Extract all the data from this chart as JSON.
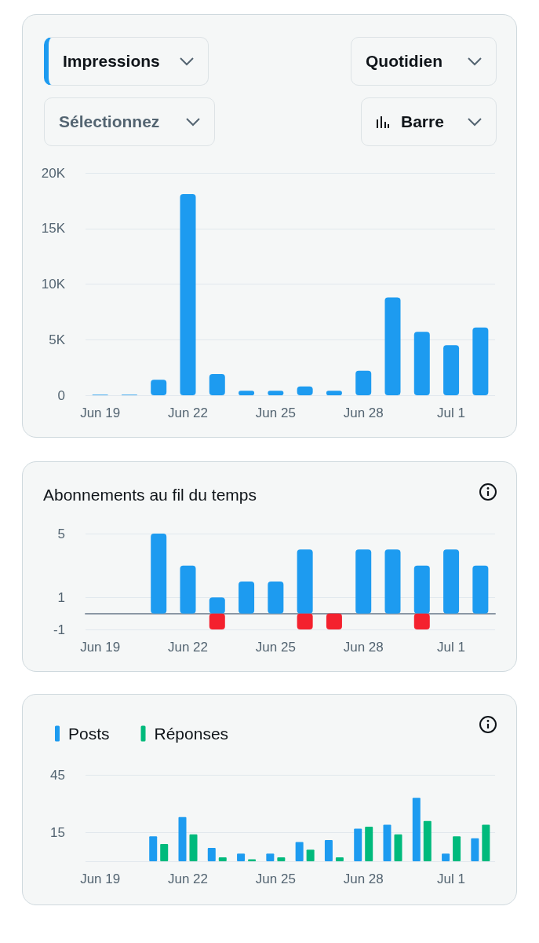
{
  "chart_data": [
    {
      "type": "bar",
      "title": "Impressions",
      "annotations": [
        "Quotidien",
        "Sélectionnez",
        "Barre"
      ],
      "categories": [
        "Jun 19",
        null,
        null,
        "Jun 22",
        null,
        null,
        "Jun 25",
        null,
        null,
        "Jun 28",
        null,
        null,
        "Jul 1",
        null
      ],
      "color": "#1d9bf0",
      "values": [
        50,
        50,
        1400,
        18100,
        1900,
        400,
        400,
        800,
        400,
        2200,
        8800,
        5700,
        4500,
        6100
      ],
      "ylim": [
        0,
        20000
      ],
      "yticks": [
        0,
        {
          "value": 5000,
          "label": "5K"
        },
        {
          "value": 10000,
          "label": "10K"
        },
        {
          "value": 15000,
          "label": "15K"
        },
        {
          "value": 20000,
          "label": "20K"
        }
      ],
      "grid": "y"
    },
    {
      "type": "bar",
      "title": "Abonnements au fil du temps",
      "stacked": true,
      "categories": [
        "Jun 19",
        null,
        null,
        "Jun 22",
        null,
        null,
        "Jun 25",
        null,
        null,
        "Jun 28",
        null,
        null,
        "Jul 1",
        null
      ],
      "series": [
        {
          "color": "#1d9bf0",
          "values": [
            0,
            0,
            5,
            3,
            1,
            2,
            2,
            4,
            0,
            4,
            4,
            3,
            4,
            3
          ]
        },
        {
          "color": "#f4212e",
          "values": [
            0,
            0,
            0,
            0,
            -1,
            0,
            0,
            -1,
            -1,
            0,
            0,
            -1,
            0,
            0
          ]
        }
      ],
      "ylim": [
        -1,
        5
      ],
      "yticks": [
        -1,
        1,
        5
      ],
      "grid": "y"
    },
    {
      "type": "bar",
      "legend": "top left",
      "categories": [
        "Jun 19",
        null,
        null,
        "Jun 22",
        null,
        null,
        "Jun 25",
        null,
        null,
        "Jun 28",
        null,
        null,
        "Jul 1",
        null
      ],
      "series": [
        {
          "name": "Posts",
          "color": "#1d9bf0",
          "values": [
            0,
            0,
            13,
            23,
            7,
            4,
            4,
            10,
            11,
            17,
            19,
            33,
            4,
            12
          ]
        },
        {
          "name": "Réponses",
          "color": "#00ba7c",
          "values": [
            0,
            0,
            9,
            14,
            2,
            1,
            2,
            6,
            2,
            18,
            14,
            21,
            13,
            19
          ]
        }
      ],
      "ylim": [
        0,
        45
      ],
      "yticks": [
        {
          "value": 0,
          "label": null
        },
        15,
        45
      ],
      "grid": "y"
    }
  ]
}
